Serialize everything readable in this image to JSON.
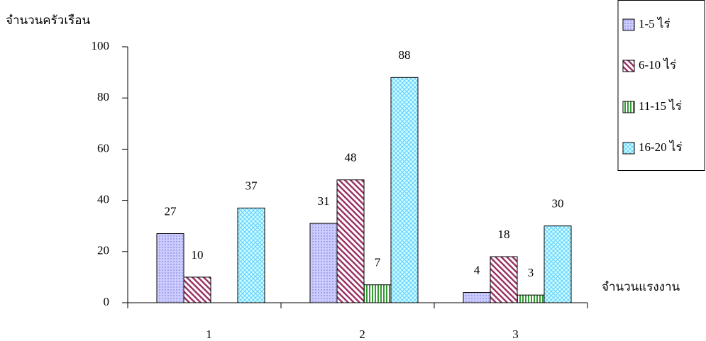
{
  "chart_data": {
    "type": "bar",
    "ylabel": "จำนวนครัวเรือน",
    "xlabel": "จำนวนแรงงาน",
    "categories": [
      "1",
      "2",
      "3"
    ],
    "series": [
      {
        "name": "1-5 ไร่",
        "color": "#ccccff",
        "values": [
          27,
          31,
          4
        ]
      },
      {
        "name": "6-10 ไร่",
        "color": "#993366",
        "values": [
          10,
          48,
          18
        ]
      },
      {
        "name": "11-15 ไร่",
        "color": "#339933",
        "values": [
          null,
          7,
          3
        ]
      },
      {
        "name": "16-20 ไร่",
        "color": "#66ccff",
        "values": [
          37,
          88,
          30
        ]
      }
    ],
    "ylim": [
      0,
      100
    ],
    "yticks": [
      0,
      20,
      40,
      60,
      80,
      100
    ],
    "legend": "right"
  }
}
